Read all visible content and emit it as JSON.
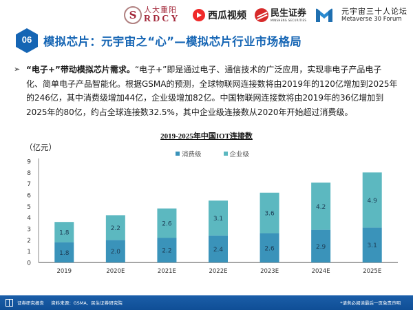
{
  "header": {
    "logos": [
      {
        "name": "rdcy",
        "cn": "人大重阳",
        "en": "RDCY"
      },
      {
        "name": "xigua",
        "cn": "西瓜视频"
      },
      {
        "name": "minsheng",
        "cn": "民生证券",
        "en": "MINSHENG SECURITIES"
      },
      {
        "name": "metaverse",
        "cn": "元宇宙三十人论坛",
        "en": "Metaverse 30 Forum"
      }
    ]
  },
  "title": {
    "section_number": "06",
    "text": "模拟芯片：元宇宙之“心”—模拟芯片行业市场格局"
  },
  "body": {
    "bullet_symbol": "➢",
    "lead": "“电子+”带动模拟芯片需求。",
    "text": "“电子+”即是通过电子、通信技术的广泛应用，实现非电子产品电子化、简单电子产品智能化。根据GSMA的预测，全球物联网连接数将由2019年的120亿增加到2025年的246亿，其中消费级增加44亿，企业级增加82亿。中国物联网连接数将由2019年的36亿增加到2025年的80亿，约占全球连接数32.5%，其中企业级连接数从2020年开始超过消费级。"
  },
  "chart_data": {
    "type": "bar",
    "stacked": true,
    "title": "2019-2025年中国IOT连接数",
    "xlabel": "",
    "ylabel": "（亿元）",
    "categories": [
      "2019",
      "2020E",
      "2021E",
      "2022E",
      "2023E",
      "2024E",
      "2025E"
    ],
    "series": [
      {
        "name": "消费级",
        "color": "#3a93ba",
        "values": [
          1.8,
          2.0,
          2.2,
          2.4,
          2.6,
          2.9,
          3.1
        ],
        "labels": [
          "1.8",
          "2.0",
          "2.2",
          "2.4",
          "2.6",
          "2.9",
          "3.1"
        ]
      },
      {
        "name": "企业级",
        "color": "#5cb8c0",
        "values": [
          1.8,
          2.2,
          2.6,
          3.1,
          3.6,
          4.2,
          4.9
        ],
        "labels": [
          "1.8",
          "2.2",
          "2.6",
          "3.1",
          "3.6",
          "4.2",
          "4.9"
        ]
      }
    ],
    "ylim": [
      0,
      9
    ],
    "yticks": [
      "0",
      "1",
      "2",
      "3",
      "4",
      "5",
      "6",
      "7",
      "8",
      "9"
    ],
    "grid": false,
    "legend_position": "top-center"
  },
  "footer": {
    "report_type": "证券研究报告",
    "source": "资料来源：GSMA、民生证券研究院",
    "disclaimer": "*请务必阅读最后一页免责声明"
  }
}
